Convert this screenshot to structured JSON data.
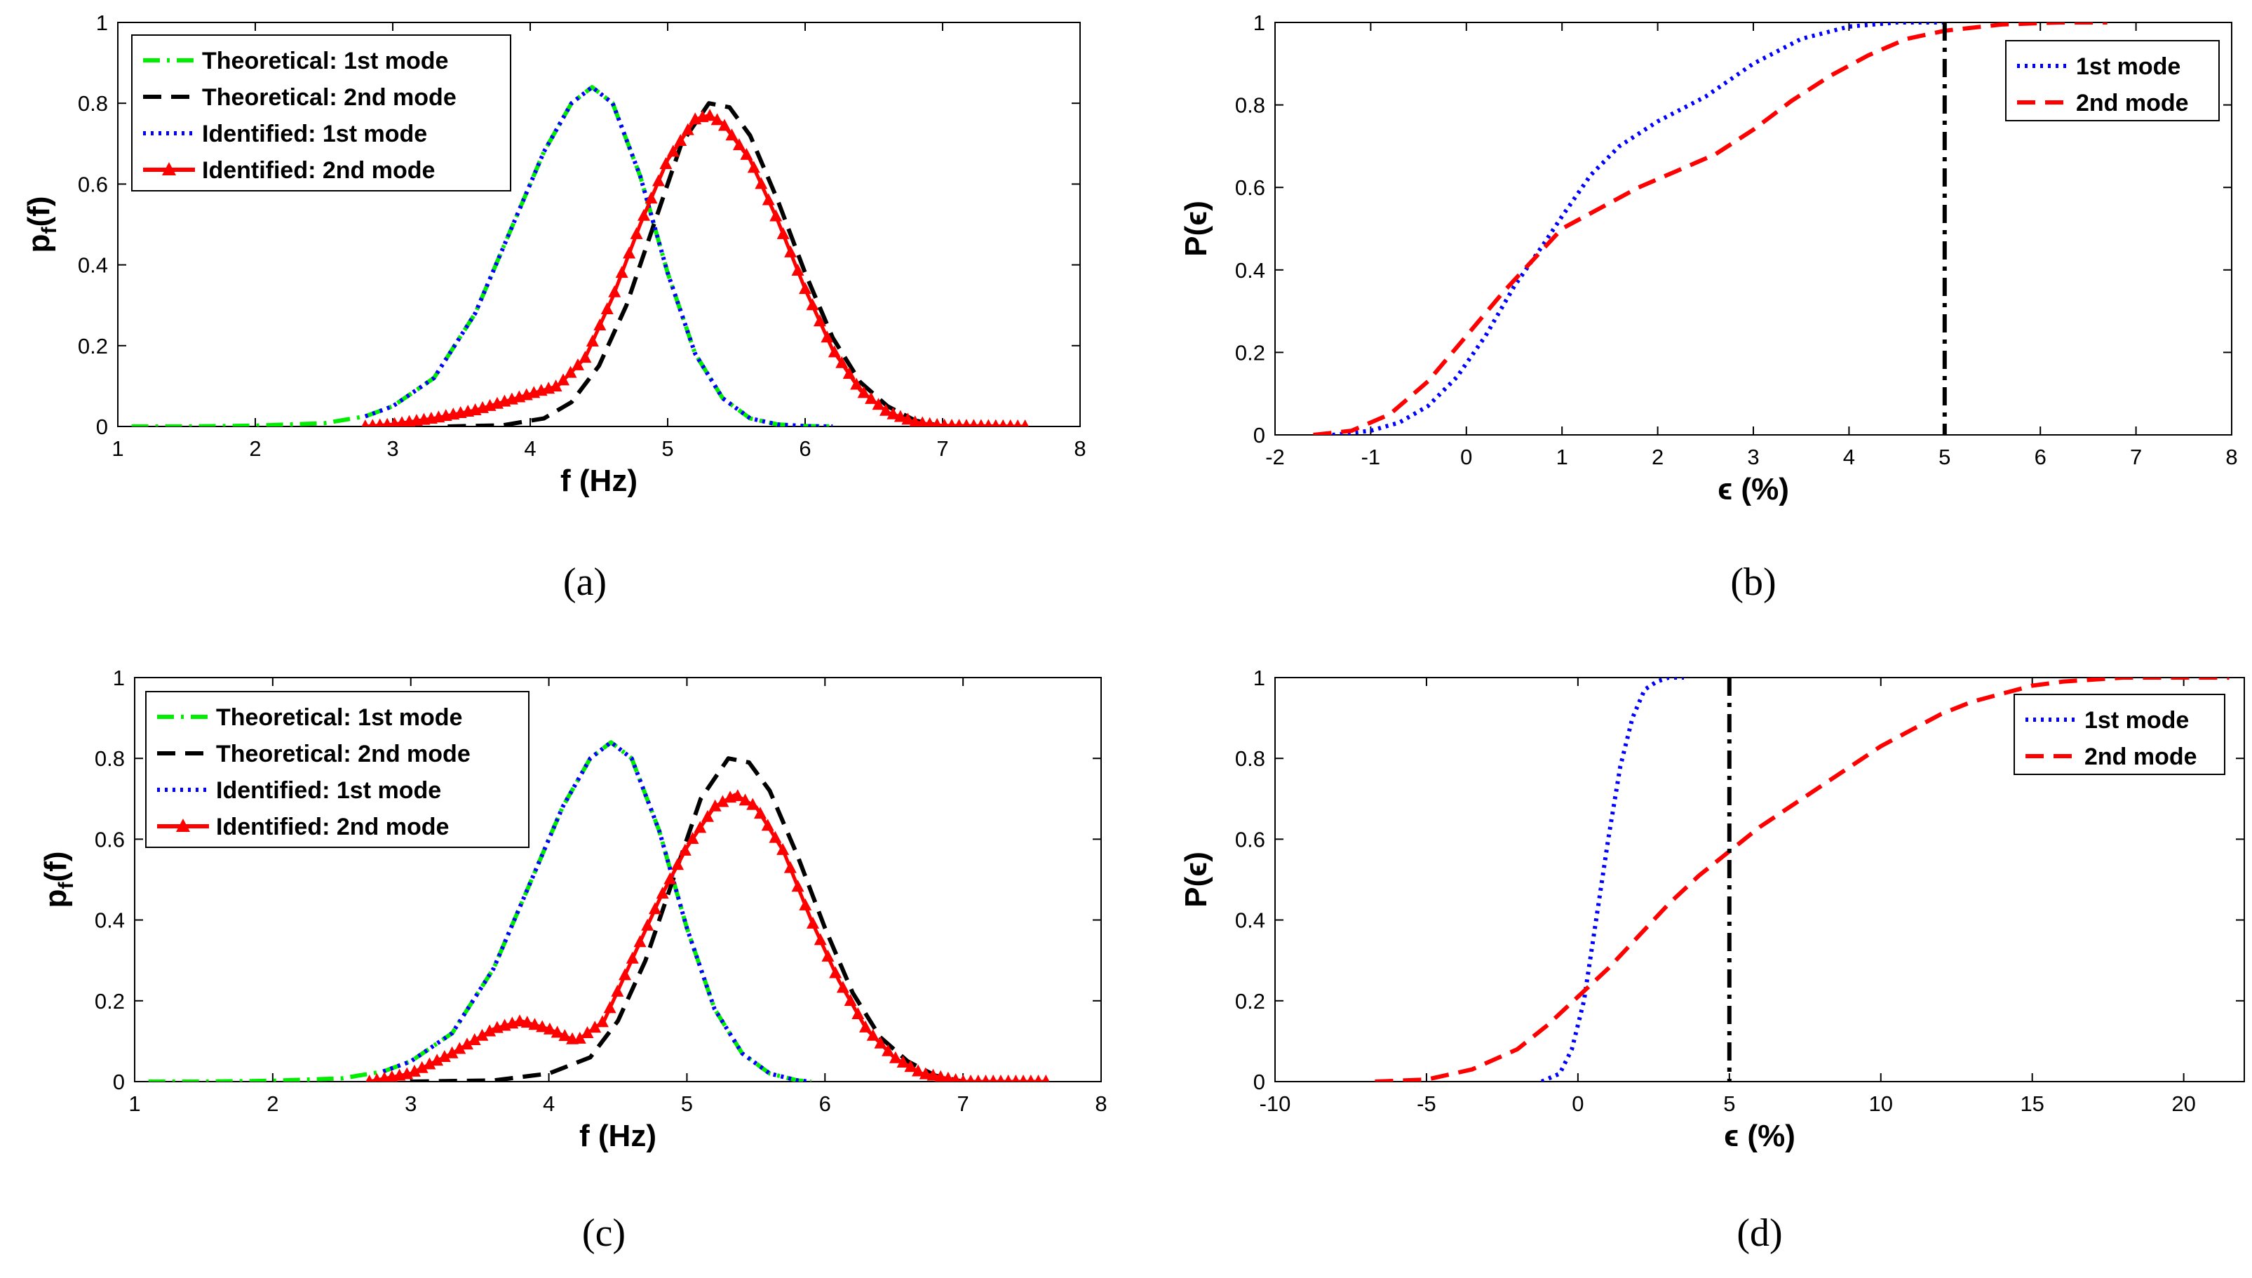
{
  "colors": {
    "green": "#00ee00",
    "black": "#000000",
    "blue": "#0000ff",
    "red": "#ff0000"
  },
  "chart_data": [
    {
      "id": "a",
      "type": "line",
      "caption": "(a)",
      "xlabel": "f (Hz)",
      "ylabel_main": "p",
      "ylabel_sub": "f",
      "ylabel_tail": "(f)",
      "xlim": [
        1,
        8
      ],
      "ylim": [
        0,
        1
      ],
      "xticks": [
        "1",
        "2",
        "3",
        "4",
        "5",
        "6",
        "7",
        "8"
      ],
      "yticks": [
        "0",
        "0.2",
        "0.4",
        "0.6",
        "0.8",
        "1"
      ],
      "legend_position": "top-left",
      "series": [
        {
          "name": "Theoretical: 1st mode",
          "style": "dashdot",
          "color": "#00ee00",
          "x": [
            1.1,
            1.5,
            2.0,
            2.5,
            2.8,
            3.0,
            3.3,
            3.6,
            3.9,
            4.1,
            4.3,
            4.45,
            4.6,
            4.8,
            5.0,
            5.2,
            5.4,
            5.6,
            5.8,
            6.0,
            6.2
          ],
          "y": [
            0.0,
            0.0,
            0.002,
            0.008,
            0.025,
            0.05,
            0.12,
            0.28,
            0.52,
            0.68,
            0.8,
            0.84,
            0.8,
            0.62,
            0.38,
            0.18,
            0.07,
            0.02,
            0.005,
            0.001,
            0.0
          ]
        },
        {
          "name": "Theoretical: 2nd mode",
          "style": "dashed",
          "color": "#000000",
          "x": [
            3.4,
            3.8,
            4.1,
            4.3,
            4.5,
            4.7,
            4.9,
            5.1,
            5.3,
            5.45,
            5.6,
            5.8,
            6.0,
            6.2,
            6.4,
            6.6,
            6.8,
            7.0
          ],
          "y": [
            0.0,
            0.003,
            0.02,
            0.06,
            0.15,
            0.3,
            0.5,
            0.7,
            0.8,
            0.79,
            0.72,
            0.56,
            0.38,
            0.22,
            0.11,
            0.05,
            0.015,
            0.0
          ]
        },
        {
          "name": "Identified: 1st mode",
          "style": "dotted",
          "color": "#0000ff",
          "x": [
            2.8,
            3.0,
            3.3,
            3.6,
            3.9,
            4.1,
            4.3,
            4.45,
            4.6,
            4.8,
            5.0,
            5.2,
            5.4,
            5.6,
            5.8,
            6.0,
            6.2
          ],
          "y": [
            0.025,
            0.05,
            0.12,
            0.28,
            0.52,
            0.68,
            0.8,
            0.84,
            0.8,
            0.62,
            0.38,
            0.18,
            0.07,
            0.02,
            0.005,
            0.001,
            0.0
          ]
        },
        {
          "name": "Identified: 2nd mode",
          "style": "marker",
          "color": "#ff0000",
          "x": [
            2.8,
            3.0,
            3.3,
            3.6,
            3.9,
            4.2,
            4.4,
            4.6,
            4.8,
            5.0,
            5.2,
            5.3,
            5.4,
            5.6,
            5.8,
            6.0,
            6.2,
            6.4,
            6.6,
            6.8,
            7.0,
            7.6
          ],
          "y": [
            0.0,
            0.005,
            0.02,
            0.04,
            0.07,
            0.1,
            0.17,
            0.32,
            0.5,
            0.66,
            0.76,
            0.77,
            0.75,
            0.66,
            0.51,
            0.34,
            0.19,
            0.09,
            0.035,
            0.01,
            0.002,
            0.0
          ]
        }
      ]
    },
    {
      "id": "b",
      "type": "line",
      "caption": "(b)",
      "xlabel": "ϵ (%)",
      "ylabel": "P(ϵ)",
      "xlim": [
        -2,
        8
      ],
      "ylim": [
        0,
        1
      ],
      "xticks": [
        "-2",
        "-1",
        "0",
        "1",
        "2",
        "3",
        "4",
        "5",
        "6",
        "7",
        "8"
      ],
      "yticks": [
        "0",
        "0.2",
        "0.4",
        "0.6",
        "0.8",
        "1"
      ],
      "legend_position": "top-right",
      "vline_x": 5,
      "series": [
        {
          "name": "1st mode",
          "style": "dotted",
          "color": "#0000ff",
          "x": [
            -1.4,
            -1.0,
            -0.7,
            -0.4,
            -0.1,
            0.2,
            0.5,
            0.8,
            1.0,
            1.3,
            1.6,
            2.0,
            2.5,
            3.0,
            3.5,
            4.0,
            4.5,
            5.0
          ],
          "y": [
            0.0,
            0.01,
            0.03,
            0.07,
            0.14,
            0.24,
            0.36,
            0.46,
            0.53,
            0.63,
            0.7,
            0.76,
            0.82,
            0.9,
            0.96,
            0.99,
            1.0,
            1.0
          ]
        },
        {
          "name": "2nd mode",
          "style": "dashed",
          "color": "#ff0000",
          "x": [
            -1.6,
            -1.2,
            -0.8,
            -0.4,
            0.0,
            0.4,
            0.8,
            1.0,
            1.4,
            1.8,
            2.2,
            2.6,
            3.0,
            3.4,
            3.8,
            4.2,
            4.6,
            5.0,
            5.6,
            6.2,
            6.7
          ],
          "y": [
            0.0,
            0.01,
            0.05,
            0.13,
            0.24,
            0.35,
            0.45,
            0.5,
            0.55,
            0.6,
            0.64,
            0.68,
            0.74,
            0.81,
            0.87,
            0.92,
            0.96,
            0.98,
            0.995,
            1.0,
            1.0
          ]
        }
      ]
    },
    {
      "id": "c",
      "type": "line",
      "caption": "(c)",
      "xlabel": "f (Hz)",
      "ylabel_main": "p",
      "ylabel_sub": "f",
      "ylabel_tail": "(f)",
      "xlim": [
        1,
        8
      ],
      "ylim": [
        0,
        1
      ],
      "xticks": [
        "1",
        "2",
        "3",
        "4",
        "5",
        "6",
        "7",
        "8"
      ],
      "yticks": [
        "0",
        "0.2",
        "0.4",
        "0.6",
        "0.8",
        "1"
      ],
      "legend_position": "top-left",
      "series": [
        {
          "name": "Theoretical: 1st mode",
          "style": "dashdot",
          "color": "#00ee00",
          "x": [
            1.1,
            1.5,
            2.0,
            2.5,
            2.8,
            3.0,
            3.3,
            3.6,
            3.9,
            4.1,
            4.3,
            4.45,
            4.6,
            4.8,
            5.0,
            5.2,
            5.4,
            5.6,
            5.8,
            5.9
          ],
          "y": [
            0.0,
            0.0,
            0.002,
            0.008,
            0.025,
            0.05,
            0.12,
            0.28,
            0.52,
            0.68,
            0.8,
            0.84,
            0.8,
            0.62,
            0.38,
            0.18,
            0.07,
            0.02,
            0.003,
            0.0
          ]
        },
        {
          "name": "Theoretical: 2nd mode",
          "style": "dashed",
          "color": "#000000",
          "x": [
            3.0,
            3.6,
            4.0,
            4.3,
            4.5,
            4.7,
            4.9,
            5.1,
            5.3,
            5.45,
            5.6,
            5.8,
            6.0,
            6.2,
            6.4,
            6.6,
            6.8,
            7.0
          ],
          "y": [
            0.0,
            0.003,
            0.02,
            0.06,
            0.15,
            0.3,
            0.5,
            0.7,
            0.8,
            0.79,
            0.72,
            0.56,
            0.38,
            0.22,
            0.11,
            0.05,
            0.015,
            0.0
          ]
        },
        {
          "name": "Identified: 1st mode",
          "style": "dotted",
          "color": "#0000ff",
          "x": [
            2.8,
            3.0,
            3.3,
            3.6,
            3.9,
            4.1,
            4.3,
            4.45,
            4.6,
            4.8,
            5.0,
            5.2,
            5.4,
            5.6,
            5.8,
            5.9
          ],
          "y": [
            0.025,
            0.05,
            0.12,
            0.28,
            0.52,
            0.68,
            0.8,
            0.84,
            0.8,
            0.62,
            0.38,
            0.18,
            0.07,
            0.02,
            0.003,
            0.0
          ]
        },
        {
          "name": "Identified: 2nd mode",
          "style": "marker",
          "color": "#ff0000",
          "x": [
            2.7,
            3.0,
            3.3,
            3.6,
            3.8,
            4.0,
            4.2,
            4.4,
            4.6,
            4.8,
            5.0,
            5.2,
            5.35,
            5.5,
            5.7,
            5.9,
            6.1,
            6.3,
            6.5,
            6.7,
            7.0,
            7.6
          ],
          "y": [
            0.0,
            0.02,
            0.07,
            0.13,
            0.15,
            0.13,
            0.1,
            0.15,
            0.3,
            0.45,
            0.58,
            0.68,
            0.71,
            0.68,
            0.57,
            0.4,
            0.25,
            0.13,
            0.06,
            0.02,
            0.0,
            0.0
          ]
        }
      ]
    },
    {
      "id": "d",
      "type": "line",
      "caption": "(d)",
      "xlabel": "ϵ (%)",
      "ylabel": "P(ϵ)",
      "xlim": [
        -10,
        22
      ],
      "ylim": [
        0,
        1
      ],
      "xticks": [
        "-10",
        "-5",
        "0",
        "5",
        "10",
        "15",
        "20"
      ],
      "xtick_values": [
        -10,
        -5,
        0,
        5,
        10,
        15,
        20
      ],
      "yticks": [
        "0",
        "0.2",
        "0.4",
        "0.6",
        "0.8",
        "1"
      ],
      "legend_position": "top-right",
      "vline_x": 5,
      "series": [
        {
          "name": "1st mode",
          "style": "dotted",
          "color": "#0000ff",
          "x": [
            -1.2,
            -0.6,
            -0.2,
            0.2,
            0.6,
            1.0,
            1.4,
            1.8,
            2.2,
            2.6,
            3.0,
            3.5
          ],
          "y": [
            0.0,
            0.02,
            0.08,
            0.2,
            0.4,
            0.6,
            0.78,
            0.9,
            0.97,
            0.99,
            1.0,
            1.0
          ]
        },
        {
          "name": "2nd mode",
          "style": "dashed",
          "color": "#ff0000",
          "x": [
            -6.7,
            -5.0,
            -3.5,
            -2.0,
            -1.0,
            0.0,
            1.0,
            2.0,
            3.0,
            4.0,
            5.0,
            6.0,
            7.0,
            8.0,
            9.0,
            10.0,
            11.0,
            12.0,
            13.0,
            14.0,
            15.0,
            16.0,
            18.0,
            20.0,
            21.5
          ],
          "y": [
            0.0,
            0.005,
            0.03,
            0.08,
            0.14,
            0.21,
            0.28,
            0.36,
            0.44,
            0.51,
            0.57,
            0.63,
            0.68,
            0.73,
            0.78,
            0.83,
            0.87,
            0.91,
            0.94,
            0.96,
            0.98,
            0.99,
            1.0,
            1.0,
            1.0
          ]
        }
      ]
    }
  ]
}
